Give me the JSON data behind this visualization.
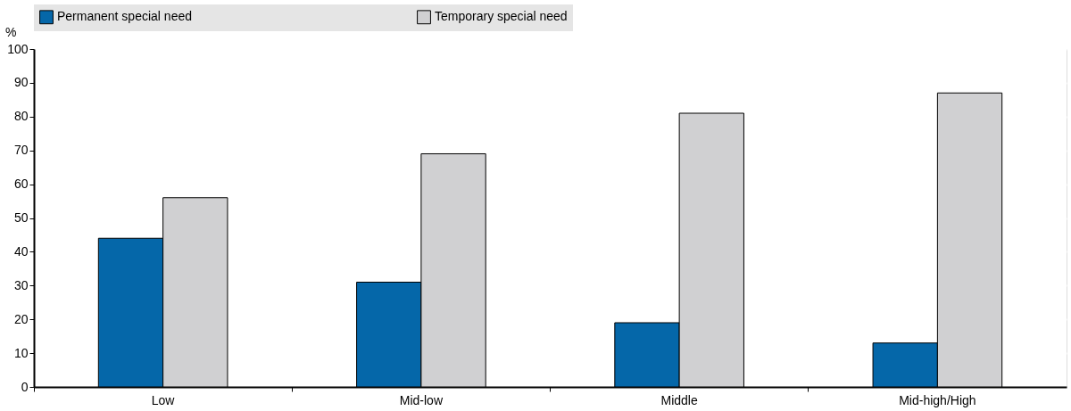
{
  "chart_data": {
    "type": "bar",
    "categories": [
      "Low",
      "Mid-low",
      "Middle",
      "Mid-high/High"
    ],
    "series": [
      {
        "name": "Permanent special need",
        "color": "#0567a9",
        "values": [
          44,
          31,
          19,
          13
        ]
      },
      {
        "name": "Temporary special need",
        "color": "#d0d0d2",
        "values": [
          56,
          69,
          81,
          87
        ]
      }
    ],
    "ylabel": "%",
    "ylim": [
      0,
      100
    ],
    "yticks": [
      0,
      10,
      20,
      30,
      40,
      50,
      60,
      70,
      80,
      90,
      100
    ],
    "grid": true,
    "legend": "top"
  }
}
